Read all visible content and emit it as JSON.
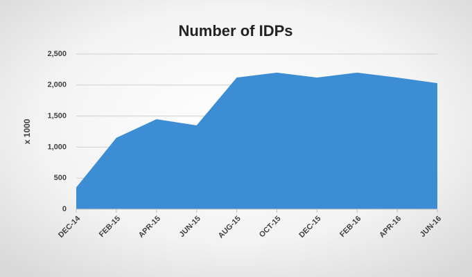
{
  "chart_data": {
    "type": "area",
    "title": "Number of IDPs",
    "y_label": "x 1000",
    "categories": [
      "DEC-14",
      "FEB-15",
      "APR-15",
      "JUN-15",
      "AUG-15",
      "OCT-15",
      "DEC-15",
      "FEB-16",
      "APR-16",
      "JUN-16"
    ],
    "values": [
      350,
      1150,
      1450,
      1350,
      2120,
      2200,
      2120,
      2200,
      2120,
      2030
    ],
    "color": "#3d8dd5",
    "ylim": [
      0,
      2500
    ],
    "yticks": [
      0,
      500,
      {
        "value": 1000,
        "label": "1,000"
      },
      {
        "value": 1500,
        "label": "1,500"
      },
      {
        "value": 2000,
        "label": "2,000"
      },
      {
        "value": 2500,
        "label": "2,500"
      }
    ],
    "grid": true
  }
}
